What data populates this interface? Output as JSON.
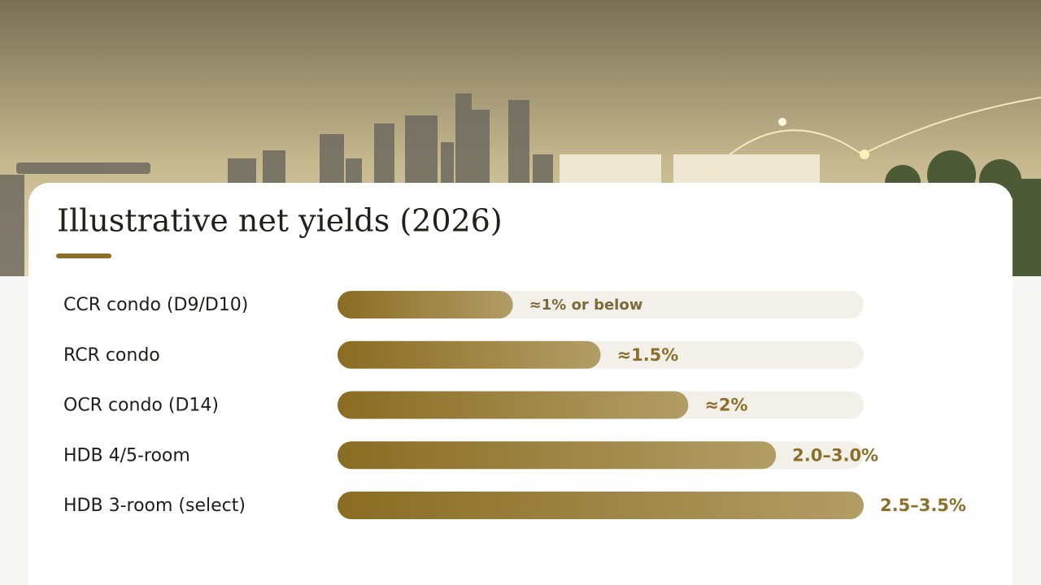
{
  "chart_data": {
    "type": "bar",
    "orientation": "horizontal",
    "title": "Illustrative net yields (2026)",
    "categories": [
      "CCR condo (D9/D10)",
      "RCR condo",
      "OCR condo (D14)",
      "HDB 4/5-room",
      "HDB 3-room (select)"
    ],
    "values": [
      1,
      1.5,
      2,
      2.5,
      3
    ],
    "value_labels": [
      "≈1% or below",
      "≈1.5%",
      "≈2%",
      "2.0–3.0%",
      "2.5–3.5%"
    ],
    "color": "#8a6c22",
    "xlim": [
      0,
      3
    ]
  }
}
